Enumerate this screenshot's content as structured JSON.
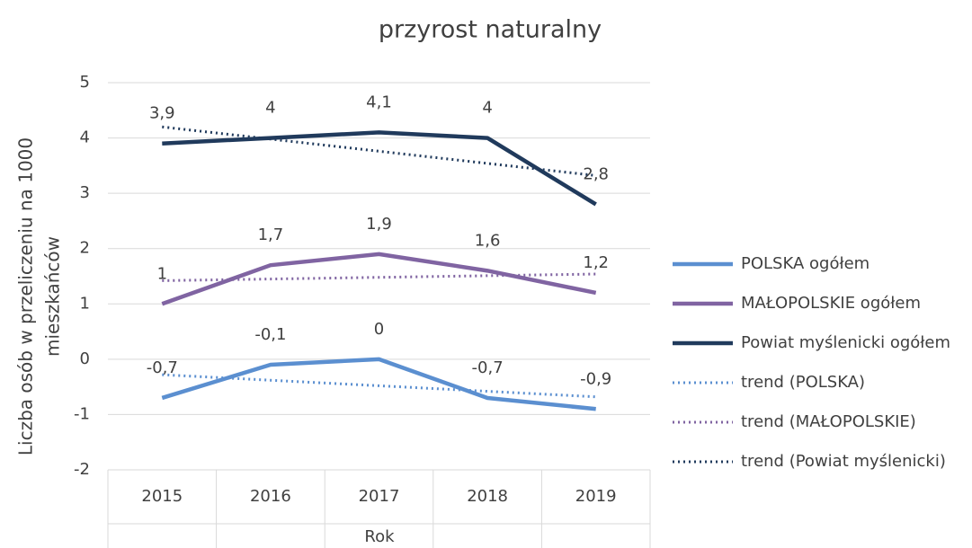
{
  "chart_data": {
    "type": "line",
    "title": "przyrost naturalny",
    "y_label": [
      "Liczba osób w przeliczeniu na 1000",
      "mieszkańców"
    ],
    "x_label": "Rok",
    "categories": [
      "2015",
      "2016",
      "2017",
      "2018",
      "2019"
    ],
    "ylim": [
      -2,
      5
    ],
    "yticks": [
      -2,
      -1,
      0,
      1,
      2,
      3,
      4,
      5
    ],
    "grid": true,
    "legend": "right",
    "series": [
      {
        "name": "POLSKA ogółem",
        "color": "#5b8fd0",
        "values": [
          -0.7,
          -0.1,
          0,
          -0.7,
          -0.9
        ],
        "value_labels": [
          "-0,7",
          "-0,1",
          "0",
          "-0,7",
          "-0,9"
        ]
      },
      {
        "name": "MAŁOPOLSKIE ogółem",
        "color": "#8064a2",
        "values": [
          1,
          1.7,
          1.9,
          1.6,
          1.2
        ],
        "value_labels": [
          "1",
          "1,7",
          "1,9",
          "1,6",
          "1,2"
        ]
      },
      {
        "name": "Powiat myślenicki ogółem",
        "color": "#203a5c",
        "values": [
          3.9,
          4,
          4.1,
          4,
          2.8
        ],
        "value_labels": [
          "3,9",
          "4",
          "4,1",
          "4",
          "2,8"
        ]
      },
      {
        "name": "trend (POLSKA)",
        "color": "#5b8fd0",
        "dashed": true,
        "values": [
          -0.28,
          -0.38,
          -0.48,
          -0.58,
          -0.68
        ]
      },
      {
        "name": "trend (MAŁOPOLSKIE)",
        "color": "#8064a2",
        "dashed": true,
        "values": [
          1.42,
          1.45,
          1.48,
          1.51,
          1.54
        ]
      },
      {
        "name": "trend (Powiat myślenicki)",
        "color": "#203a5c",
        "dashed": true,
        "values": [
          4.2,
          3.98,
          3.76,
          3.54,
          3.32
        ]
      }
    ]
  }
}
